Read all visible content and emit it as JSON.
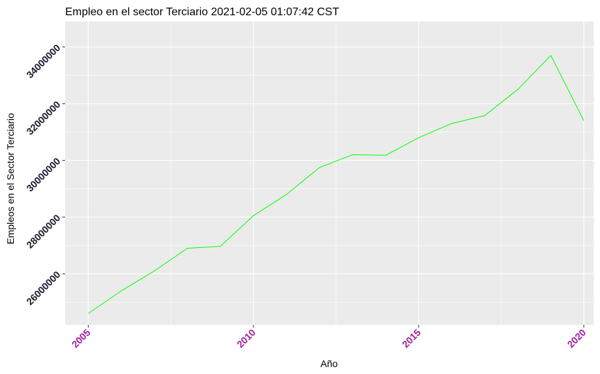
{
  "chart_data": {
    "type": "line",
    "title": "Empleo en el sector Terciario 2021-02-05 01:07:42 CST",
    "xlabel": "Año",
    "ylabel": "Empleos en el Sector Terciario",
    "x": [
      2005,
      2006,
      2007,
      2008,
      2009,
      2010,
      2011,
      2012,
      2013,
      2014,
      2015,
      2016,
      2017,
      2018,
      2019,
      2020
    ],
    "series": [
      {
        "values": [
          24600000,
          25400000,
          26100000,
          26900000,
          26970000,
          28050000,
          28800000,
          29750000,
          30200000,
          30180000,
          30800000,
          31300000,
          31580000,
          32500000,
          33700000,
          31400000
        ]
      }
    ],
    "xlim": [
      2004.3,
      2020.3
    ],
    "ylim": [
      24200000,
      34900000
    ],
    "x_ticks": [
      "2005",
      "2010",
      "2015",
      "2020"
    ],
    "y_ticks": [
      "26000000",
      "28000000",
      "30000000",
      "32000000",
      "34000000"
    ],
    "grid": true,
    "colors": {
      "line": "#00ff00",
      "panel": "#ebebeb",
      "grid": "#ffffff",
      "xtick_text": "#a020a0",
      "ytick_text": "#1a1a2e"
    }
  }
}
